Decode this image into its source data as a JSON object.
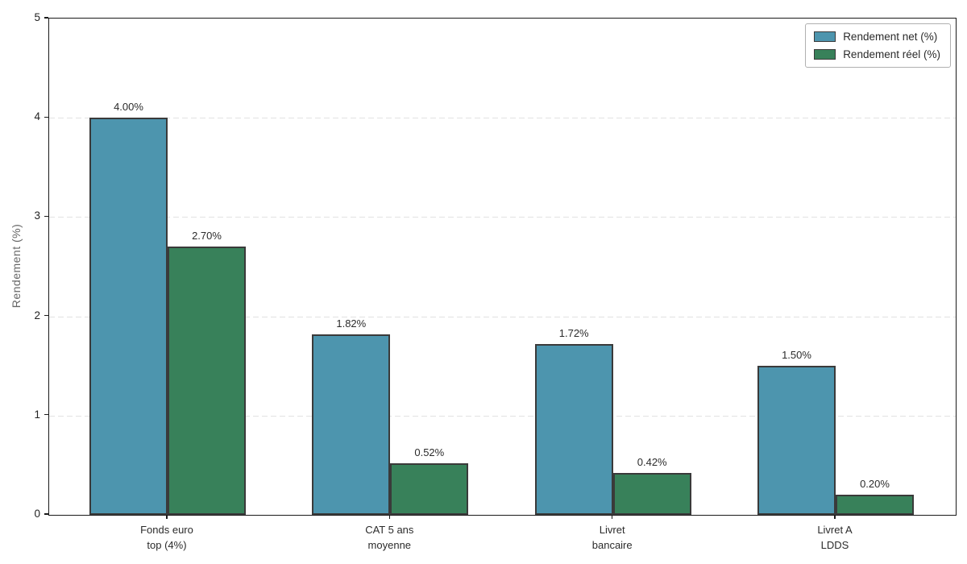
{
  "chart_data": {
    "type": "bar",
    "title": "",
    "xlabel": "",
    "ylabel": "Rendement (%)",
    "ylim": [
      0,
      5
    ],
    "yticks": [
      0,
      1,
      2,
      3,
      4,
      5
    ],
    "grid": "horizontal-dashed",
    "legend_position": "upper-right",
    "categories": [
      {
        "line1": "Fonds euro",
        "line2": "top (4%)"
      },
      {
        "line1": "CAT 5 ans",
        "line2": "moyenne"
      },
      {
        "line1": "Livret",
        "line2": "bancaire"
      },
      {
        "line1": "Livret A",
        "line2": "LDDS"
      }
    ],
    "series": [
      {
        "name": "Rendement net (%)",
        "color": "#4d95ae",
        "values": [
          4.0,
          1.82,
          1.72,
          1.5
        ],
        "labels": [
          "4.00%",
          "1.82%",
          "1.72%",
          "1.50%"
        ]
      },
      {
        "name": "Rendement réel (%)",
        "color": "#38815a",
        "values": [
          2.7,
          0.52,
          0.42,
          0.2
        ],
        "labels": [
          "2.70%",
          "0.52%",
          "0.42%",
          "0.20%"
        ]
      }
    ],
    "bar_edge_color": "#3a3a3a",
    "grid_color": "#e2e2e2",
    "spine_color": "#1a1a1a",
    "text_color": "#2b2b2b",
    "axis_label_color": "#666666",
    "background_color": "#ffffff"
  }
}
